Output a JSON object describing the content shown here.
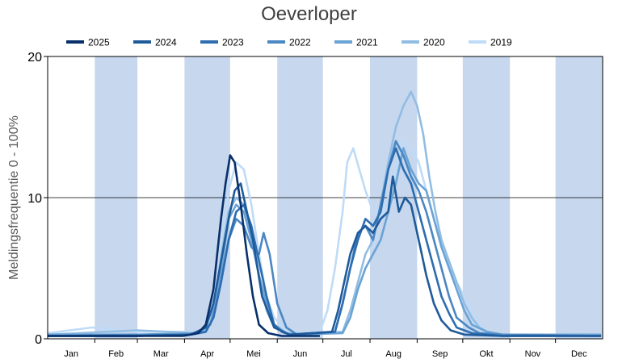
{
  "chart_data": {
    "type": "line",
    "title": "Oeverloper",
    "ylabel": "Meldingsfrequentie 0 - 100%",
    "xlabel": "",
    "ylim": [
      0,
      20
    ],
    "yticks": [
      0,
      10,
      20
    ],
    "grid": "horizontal line at 10",
    "legend_position": "top",
    "months": [
      "Jan",
      "Feb",
      "Mar",
      "Apr",
      "Mei",
      "Jun",
      "Jul",
      "Aug",
      "Sep",
      "Okt",
      "Nov",
      "Dec"
    ],
    "shaded_months": [
      "Feb",
      "Apr",
      "Jun",
      "Aug",
      "Okt",
      "Dec"
    ],
    "shade_color": "#c6d7ee",
    "series": [
      {
        "name": "2025",
        "color": "#08306b",
        "x": [
          1,
          60,
          90,
          100,
          105,
          110,
          113,
          115,
          118,
          121,
          124,
          128,
          132,
          136,
          140,
          146,
          155,
          180
        ],
        "y": [
          0.2,
          0.2,
          0.2,
          0.4,
          1.0,
          3.5,
          6.5,
          8.5,
          11.0,
          13.0,
          12.5,
          9.5,
          6.0,
          3.0,
          1.0,
          0.4,
          0.2,
          0.2
        ]
      },
      {
        "name": "2024",
        "color": "#1f5a9a",
        "x": [
          1,
          60,
          95,
          105,
          110,
          115,
          120,
          124,
          128,
          132,
          136,
          142,
          150,
          160,
          188,
          192,
          196,
          200,
          205,
          210,
          215,
          220,
          225,
          228,
          232,
          236,
          240,
          245,
          250,
          255,
          260,
          266,
          275,
          300,
          365
        ],
        "y": [
          0.2,
          0.2,
          0.3,
          0.8,
          2.5,
          5.5,
          8.5,
          10.5,
          11.0,
          9.0,
          7.0,
          3.0,
          0.8,
          0.3,
          0.5,
          2.0,
          4.0,
          6.0,
          7.5,
          8.0,
          7.5,
          8.5,
          9.0,
          11.5,
          9.0,
          10.0,
          9.5,
          7.0,
          4.5,
          2.5,
          1.3,
          0.6,
          0.3,
          0.2,
          0.2
        ]
      },
      {
        "name": "2023",
        "color": "#2d6db0",
        "x": [
          1,
          60,
          95,
          105,
          110,
          115,
          120,
          125,
          130,
          135,
          140,
          145,
          150,
          155,
          160,
          190,
          195,
          200,
          205,
          210,
          215,
          220,
          225,
          230,
          235,
          240,
          245,
          250,
          255,
          260,
          265,
          270,
          280,
          300,
          365
        ],
        "y": [
          0.2,
          0.2,
          0.3,
          0.5,
          1.5,
          4.0,
          7.0,
          9.0,
          9.5,
          8.0,
          5.5,
          3.0,
          1.0,
          0.5,
          0.3,
          0.5,
          2.5,
          5.0,
          7.0,
          8.5,
          8.0,
          9.0,
          12.0,
          13.5,
          12.0,
          11.0,
          9.0,
          7.0,
          5.0,
          3.0,
          1.8,
          0.8,
          0.4,
          0.2,
          0.2
        ]
      },
      {
        "name": "2022",
        "color": "#4a87c3",
        "x": [
          1,
          60,
          95,
          105,
          110,
          115,
          120,
          125,
          130,
          135,
          140,
          143,
          147,
          152,
          158,
          165,
          190,
          195,
          200,
          205,
          210,
          215,
          220,
          225,
          230,
          235,
          240,
          245,
          250,
          255,
          260,
          265,
          270,
          278,
          285,
          300,
          365
        ],
        "y": [
          0.2,
          0.3,
          0.3,
          0.5,
          1.5,
          4.0,
          7.0,
          8.5,
          8.0,
          6.5,
          6.0,
          7.5,
          6.0,
          2.5,
          0.8,
          0.3,
          0.5,
          2.5,
          5.0,
          7.5,
          8.0,
          7.0,
          9.5,
          12.0,
          14.0,
          13.0,
          11.5,
          10.5,
          9.0,
          7.0,
          5.0,
          3.0,
          1.5,
          0.8,
          0.4,
          0.3,
          0.2
        ]
      },
      {
        "name": "2021",
        "color": "#6aa3d5",
        "x": [
          1,
          60,
          100,
          108,
          112,
          116,
          120,
          125,
          130,
          135,
          140,
          145,
          150,
          158,
          165,
          195,
          200,
          205,
          210,
          215,
          220,
          225,
          230,
          235,
          240,
          245,
          250,
          255,
          260,
          265,
          270,
          275,
          280,
          290,
          300,
          365
        ],
        "y": [
          0.3,
          0.3,
          0.4,
          1.0,
          3.0,
          5.5,
          8.5,
          9.5,
          9.0,
          7.0,
          4.5,
          2.5,
          1.0,
          0.4,
          0.3,
          0.4,
          1.5,
          3.5,
          5.0,
          6.0,
          7.0,
          9.0,
          11.0,
          13.5,
          12.0,
          11.0,
          10.5,
          8.5,
          6.5,
          5.0,
          3.5,
          2.0,
          1.0,
          0.5,
          0.3,
          0.3
        ]
      },
      {
        "name": "2020",
        "color": "#92bde3",
        "x": [
          1,
          60,
          100,
          108,
          112,
          116,
          120,
          125,
          130,
          135,
          140,
          145,
          150,
          158,
          165,
          195,
          200,
          205,
          210,
          215,
          220,
          225,
          230,
          235,
          240,
          244,
          248,
          252,
          256,
          260,
          265,
          270,
          275,
          280,
          285,
          290,
          300,
          365
        ],
        "y": [
          0.3,
          0.6,
          0.4,
          1.0,
          3.5,
          6.5,
          9.0,
          10.0,
          9.5,
          7.5,
          4.5,
          2.0,
          0.8,
          0.4,
          0.3,
          0.5,
          2.0,
          4.0,
          6.0,
          7.0,
          9.5,
          12.5,
          15.0,
          16.5,
          17.5,
          16.5,
          14.5,
          11.5,
          9.0,
          7.0,
          5.5,
          4.0,
          2.5,
          1.5,
          0.8,
          0.5,
          0.3,
          0.3
        ]
      },
      {
        "name": "2019",
        "color": "#bfdbf7",
        "x": [
          1,
          30,
          60,
          100,
          108,
          112,
          116,
          120,
          125,
          130,
          135,
          140,
          145,
          150,
          158,
          165,
          180,
          185,
          190,
          195,
          198,
          202,
          206,
          210,
          215,
          220,
          225,
          230,
          235,
          240,
          245,
          250,
          255,
          260,
          265,
          270,
          275,
          280,
          285,
          290,
          300,
          365
        ],
        "y": [
          0.4,
          0.8,
          0.5,
          0.5,
          1.0,
          3.5,
          7.0,
          10.5,
          12.5,
          12.0,
          9.5,
          6.0,
          3.0,
          1.5,
          0.6,
          0.4,
          0.5,
          2.0,
          5.0,
          9.0,
          12.5,
          13.5,
          12.0,
          10.5,
          9.0,
          8.5,
          10.0,
          12.0,
          14.0,
          13.5,
          12.5,
          10.5,
          8.5,
          7.0,
          5.0,
          4.0,
          3.0,
          2.0,
          1.0,
          0.5,
          0.3,
          0.3
        ]
      }
    ]
  }
}
